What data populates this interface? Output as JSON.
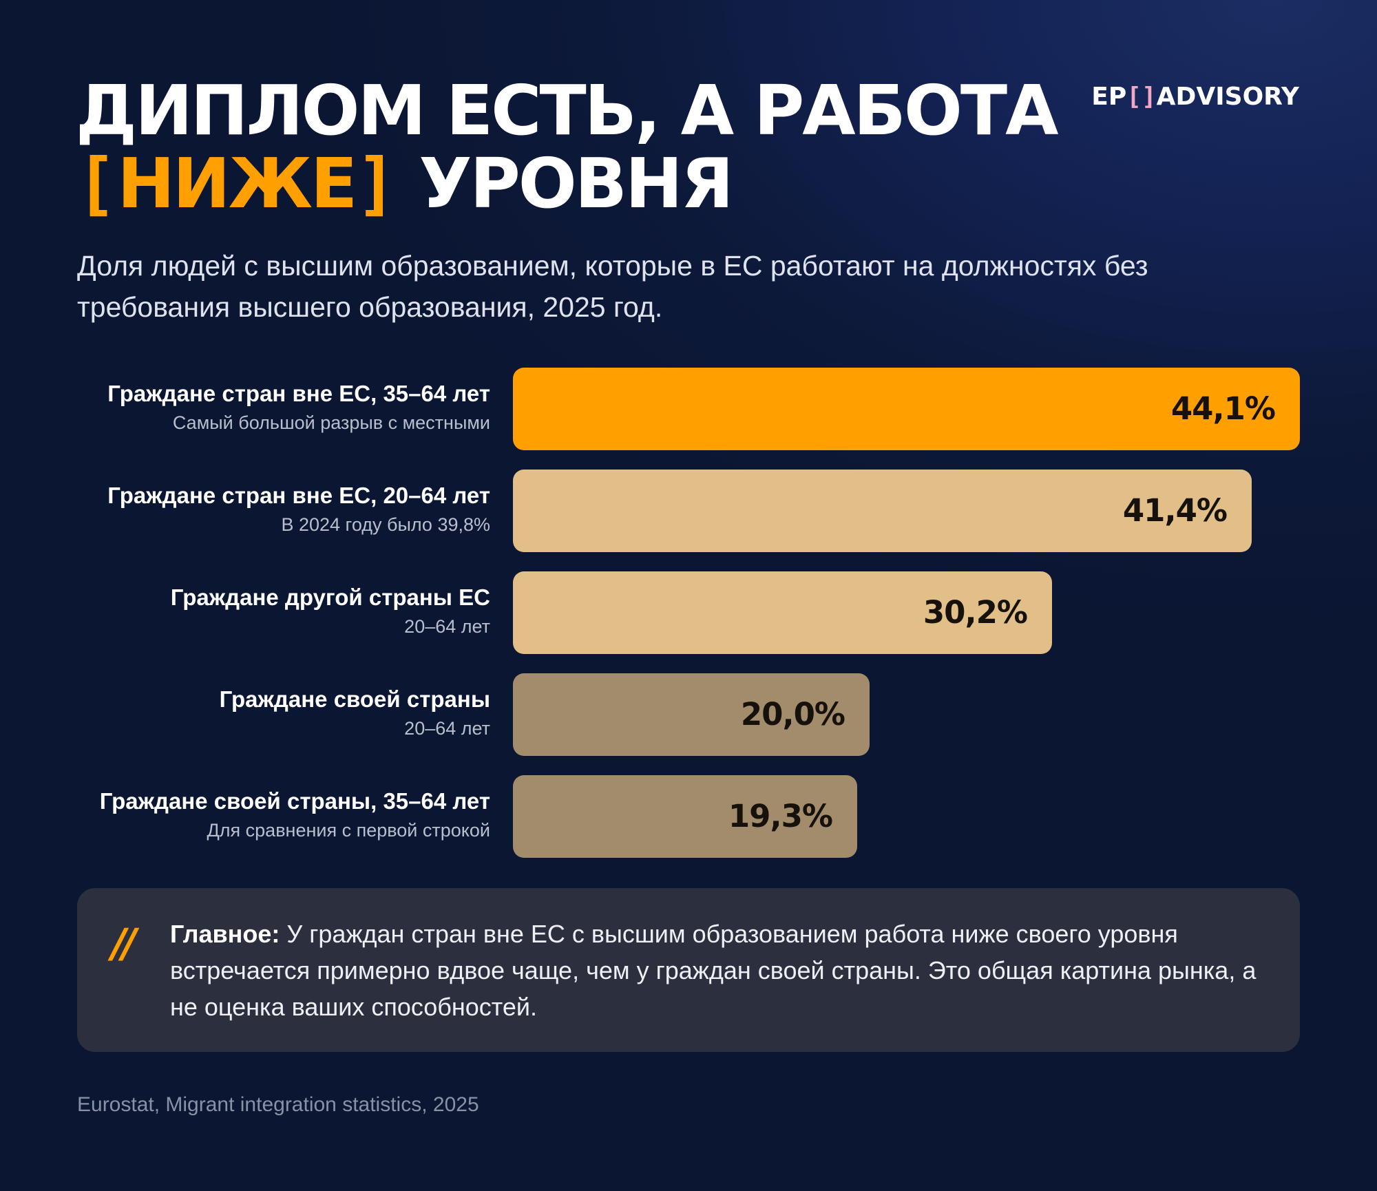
{
  "header": {
    "title_line1": "ДИПЛОМ ЕСТЬ, А РАБОТА",
    "title_bracket_open": "[",
    "title_accent": "НИЖЕ",
    "title_bracket_close": "]",
    "title_rest": "УРОВНЯ",
    "logo_left": "EP",
    "logo_bracket_open": "[",
    "logo_bracket_close": "]",
    "logo_right": "ADVISORY",
    "subtitle": "Доля людей с высшим образованием, которые в ЕС работают на должностях без требования высшего образования, 2025 год."
  },
  "chart_data": {
    "type": "bar",
    "orientation": "horizontal",
    "title": "ДИПЛОМ ЕСТЬ, А [НИЖЕ] УРОВНЯ",
    "subtitle": "Доля людей с высшим образованием, которые в ЕС работают на должностях без требования высшего образования, 2025 год.",
    "xlabel": "",
    "ylabel": "",
    "xlim": [
      0,
      44.1
    ],
    "grid": false,
    "categories": [
      "Граждане стран вне ЕС, 35–64 лет",
      "Граждане стран вне ЕС, 20–64 лет",
      "Граждане другой страны ЕС",
      "Граждане своей страны",
      "Граждане своей страны, 35–64 лет"
    ],
    "notes": [
      "Самый большой разрыв с местными",
      "В 2024 году было 39,8%",
      "20–64 лет",
      "20–64 лет",
      "Для сравнения с первой строкой"
    ],
    "values": [
      44.1,
      41.4,
      30.2,
      20.0,
      19.3
    ],
    "value_labels": [
      "44,1%",
      "41,4%",
      "30,2%",
      "20,0%",
      "19,3%"
    ],
    "colors": [
      "#ffa000",
      "#e2be88",
      "#e2be88",
      "#a38c6c",
      "#a38c6c"
    ]
  },
  "callout": {
    "icon": "double-slash-icon",
    "icon_glyph": "//",
    "lead": "Главное:",
    "text": " У граждан стран вне ЕС с высшим образованием работа ниже своего уровня встречается примерно вдвое чаще, чем у граждан своей страны. Это общая картина рынка, а не оценка ваших способностей."
  },
  "source": "Eurostat, Migrant integration statistics, 2025"
}
